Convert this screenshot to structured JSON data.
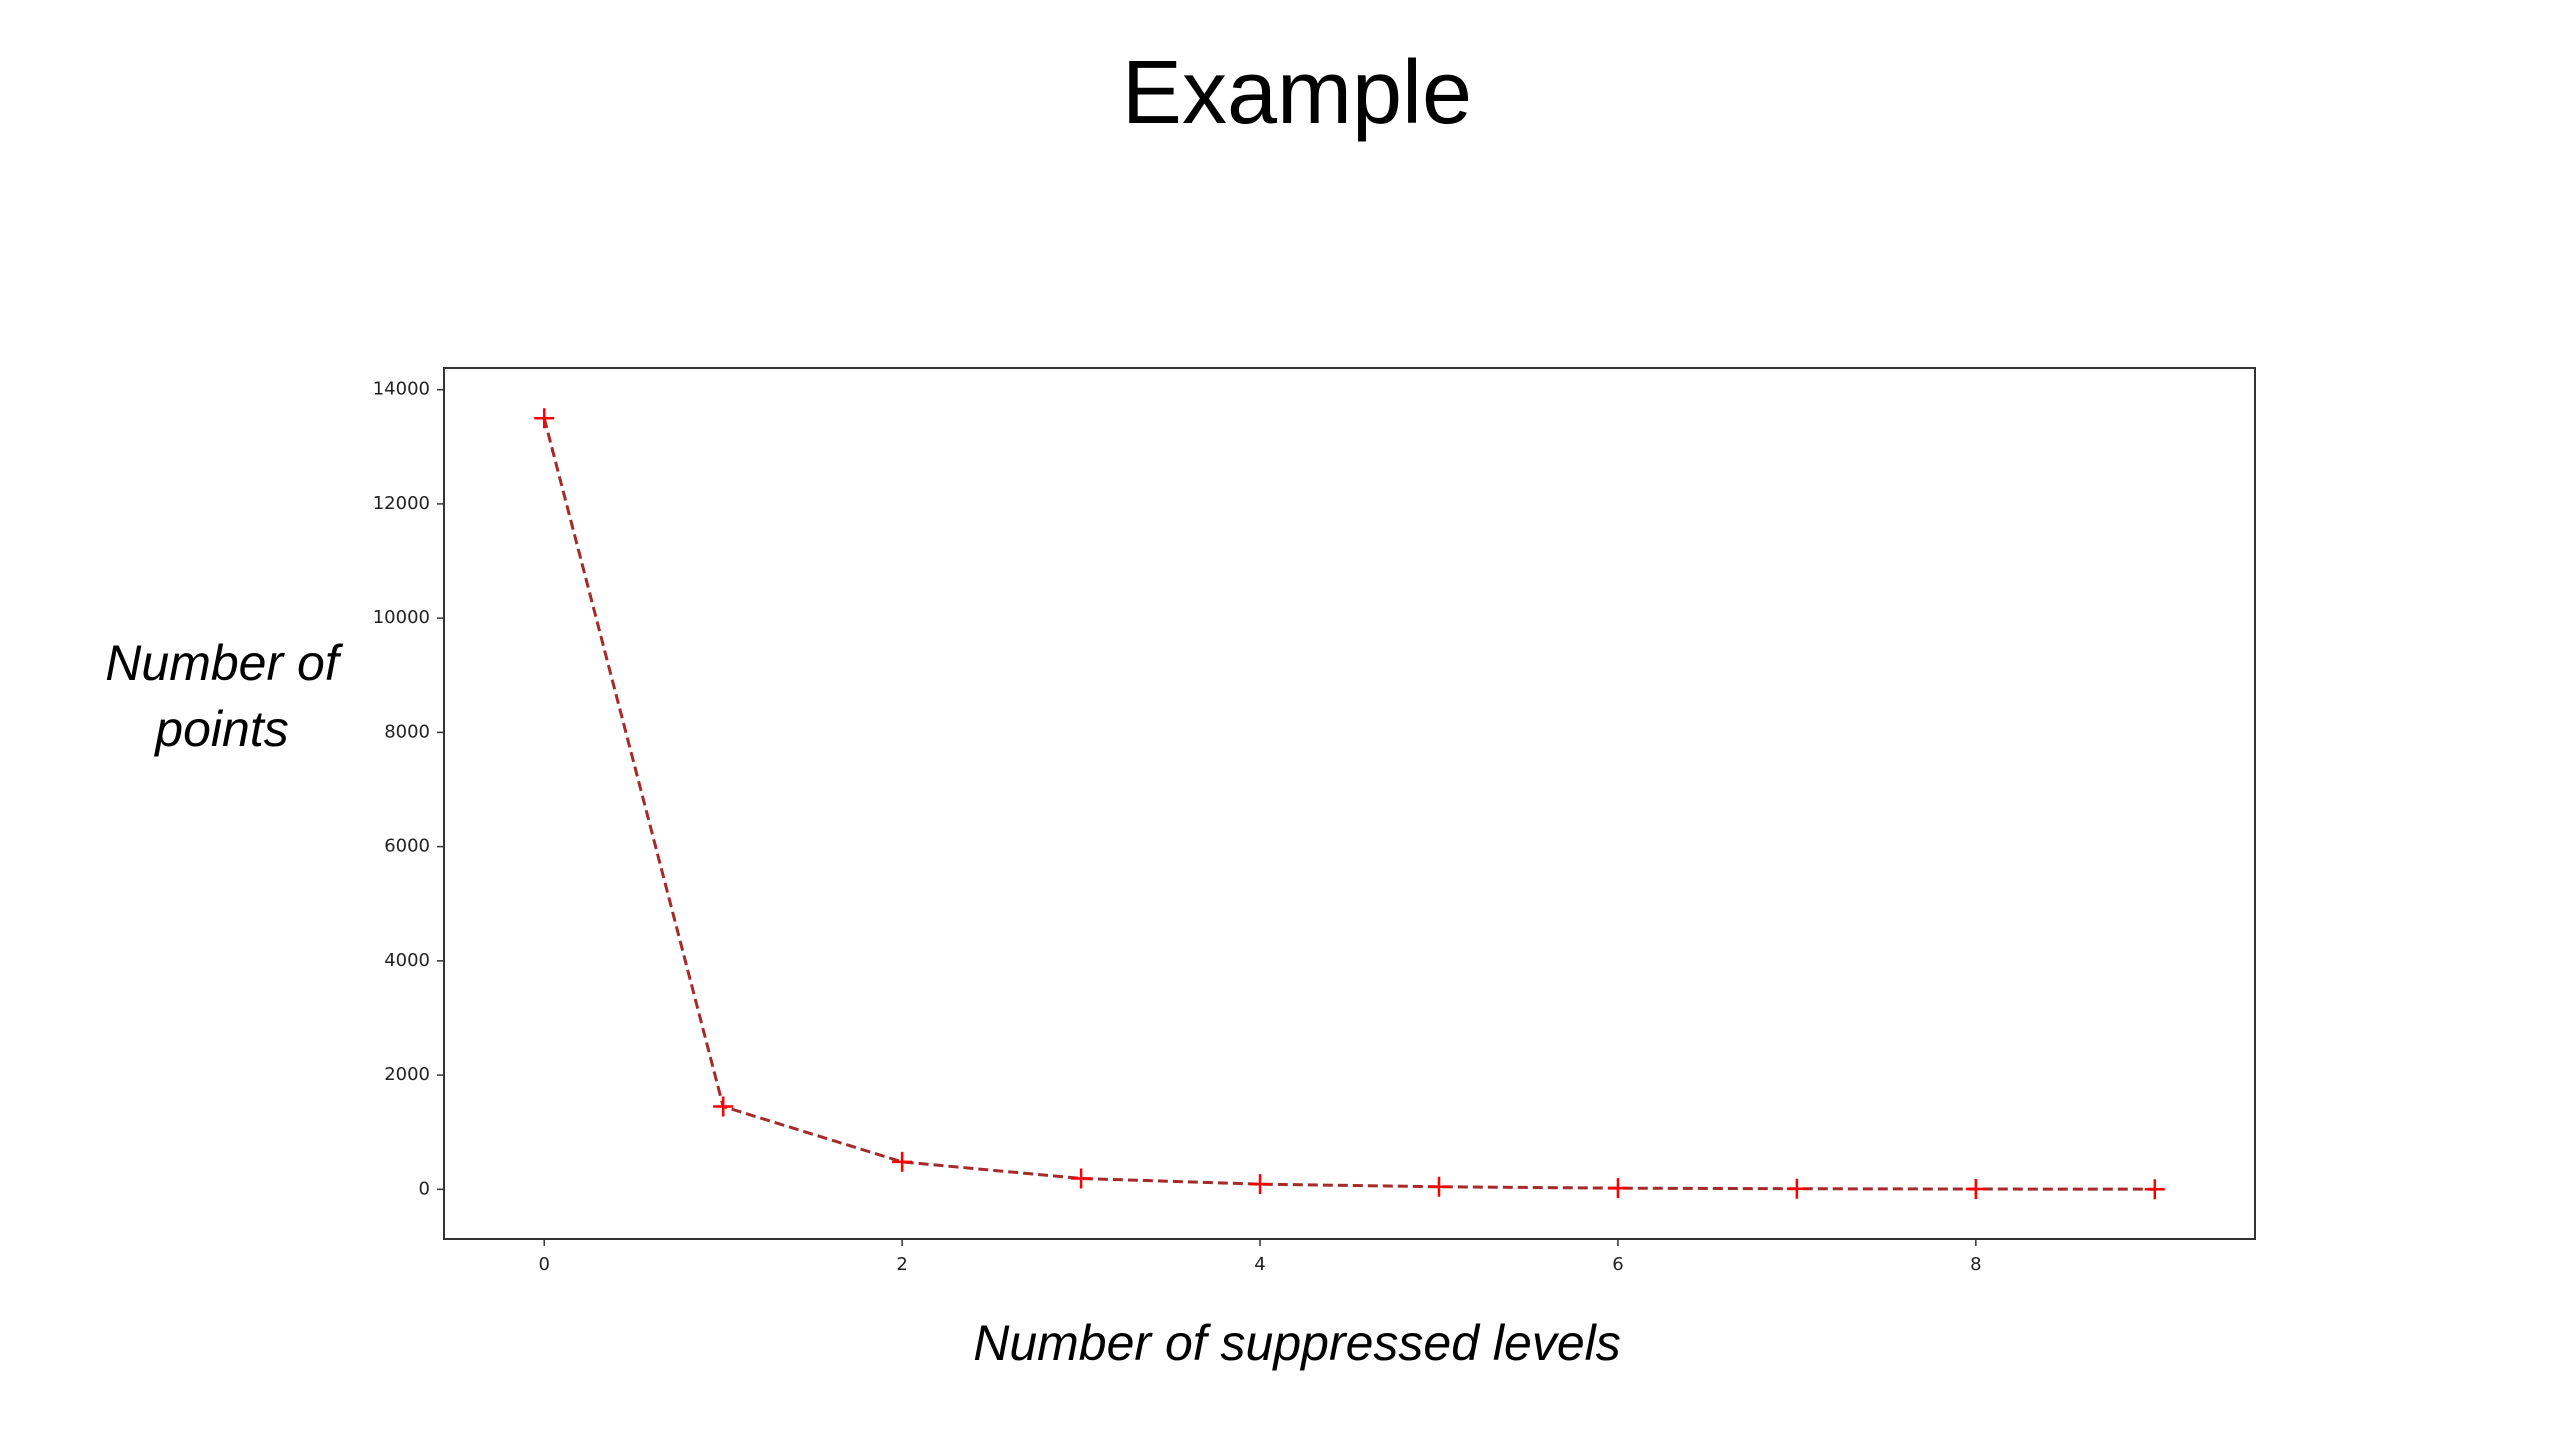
{
  "chart_data": {
    "type": "line",
    "title": "Example",
    "x_label": "Number of suppressed levels",
    "y_label": "Number of points",
    "x": [
      0,
      1,
      2,
      3,
      4,
      5,
      6,
      7,
      8,
      9
    ],
    "series": [
      {
        "color": "#a52a2a",
        "marker_color": "#ff0000",
        "line_style": "dashed",
        "marker": "+",
        "values": [
          13500,
          1450,
          480,
          190,
          90,
          45,
          20,
          10,
          5,
          2
        ]
      }
    ],
    "xlim": [
      -0.56,
      9.56
    ],
    "xticks": [
      0,
      2,
      4,
      6,
      8
    ],
    "ylim": [
      -870,
      14380
    ],
    "yticks": [
      0,
      2000,
      4000,
      6000,
      8000,
      10000,
      12000,
      14000
    ],
    "grid": false
  }
}
